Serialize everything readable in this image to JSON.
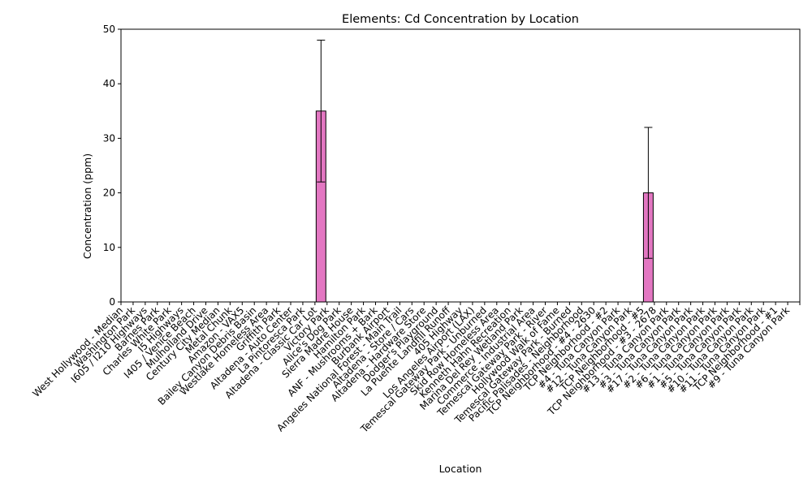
{
  "chart_data": {
    "type": "bar",
    "title": "Elements: Cd Concentration by Location",
    "xlabel": "Location",
    "ylabel": "Concentration (ppm)",
    "ylim": [
      0,
      50
    ],
    "yticks": [
      0,
      10,
      20,
      30,
      40,
      50
    ],
    "grid": false,
    "legend": "none",
    "bar_color": "#e377c2",
    "categories": [
      "West Hollywood - Median",
      "Washington Park",
      "I605 / I210 Highways",
      "Barnes Park",
      "Charles White Park",
      "I5 Highways",
      "I405 / Venice Beach",
      "Mulholland Drive",
      "Century City Median",
      "Metal Chunk",
      "Amazon - VAX5",
      "Bailey Canyon Debris Basin",
      "Westlake Homeless Area",
      "Griffith Park",
      "Altadena - Auto Center",
      "La Pintoresca Park",
      "Altadena - Classic Car Lot",
      "Victory Park",
      "Alice's Dog Park",
      "Sierra Madre House",
      "Hamilton Park",
      "ANF - Mushrooms + Bark",
      "Burbank Airport",
      "Angeles National Forest - Main Trail",
      "Altadena - Store / Cars",
      "Altadena - Hardware Store",
      "Dodger's Playground",
      "La Puente Landfill Runoff",
      "405 Highway",
      "Los Angeles Airport (LAX)",
      "Temescal Gateway Park - Unburned",
      "Skid Row Homeless Area",
      "Kenneth Hahn Recreation",
      "Marina Del Rey Wetland Park",
      "Commerce - Industrial Area",
      "Temescal Gateway Park - River",
      "Hollywood Walk of Fame",
      "Temescal Gateway Park - Burned",
      "Pacific Palisades - Neighborhood",
      "TCP Neighborhood - #4 - 2630",
      "TCP Neighborhood - #2",
      "#4 - Tuna Canyon Park",
      "#12 - Tuna Canyon Park",
      "TCP Neighborhood - #5",
      "TCP Neighborhood - #3 - 2678",
      "#13 - Tuna Canyon Park",
      "#3 - Tuna Canyon Park",
      "#17 - Tuna Canyon Park",
      "#2 - Tuna Canyon Park",
      "#6 - Tuna Canyon Park",
      "#1 - Tuna Canyon Park",
      "#5 - Tuna Canyon Park",
      "#10 - Tuna Canyon Park",
      "#11 - Tuna Canyon Park",
      "TCP Neighborhood - #1",
      "#9 - Tuna Canyon Park"
    ],
    "values": [
      0,
      0,
      0,
      0,
      0,
      0,
      0,
      0,
      0,
      0,
      0,
      0,
      0,
      0,
      0,
      0,
      35,
      0,
      0,
      0,
      0,
      0,
      0,
      0,
      0,
      0,
      0,
      0,
      0,
      0,
      0,
      0,
      0,
      0,
      0,
      0,
      0,
      0,
      0,
      0,
      0,
      0,
      0,
      20,
      0,
      0,
      0,
      0,
      0,
      0,
      0,
      0,
      0,
      0,
      0,
      0
    ],
    "errors": [
      0,
      0,
      0,
      0,
      0,
      0,
      0,
      0,
      0,
      0,
      0,
      0,
      0,
      0,
      0,
      0,
      13,
      0,
      0,
      0,
      0,
      0,
      0,
      0,
      0,
      0,
      0,
      0,
      0,
      0,
      0,
      0,
      0,
      0,
      0,
      0,
      0,
      0,
      0,
      0,
      0,
      0,
      0,
      12,
      0,
      0,
      0,
      0,
      0,
      0,
      0,
      0,
      0,
      0,
      0,
      0
    ]
  }
}
